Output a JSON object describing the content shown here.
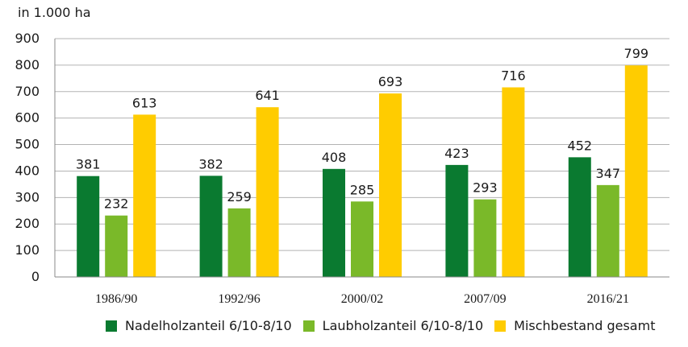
{
  "chart_data": {
    "type": "bar",
    "title": "",
    "unit_label": "in 1.000 ha",
    "xlabel": "",
    "ylabel": "",
    "ylim": [
      0,
      900
    ],
    "yticks": [
      0,
      100,
      200,
      300,
      400,
      500,
      600,
      700,
      800,
      900
    ],
    "ytick_labels": [
      "0",
      "100",
      "200",
      "300",
      "400",
      "500",
      "600",
      "700",
      "800",
      "900"
    ],
    "grid": true,
    "legend_position": "bottom",
    "categories": [
      "1986/90",
      "1992/96",
      "2000/02",
      "2007/09",
      "2016/21"
    ],
    "series": [
      {
        "name": "Nadelholzanteil 6/10-8/10",
        "color": "#0a7a30",
        "values": [
          381,
          382,
          408,
          423,
          452
        ]
      },
      {
        "name": "Laubholzanteil 6/10-8/10",
        "color": "#7ab929",
        "values": [
          232,
          259,
          285,
          293,
          347
        ]
      },
      {
        "name": "Mischbestand gesamt",
        "color": "#ffcc00",
        "values": [
          613,
          641,
          693,
          716,
          799
        ]
      }
    ]
  }
}
